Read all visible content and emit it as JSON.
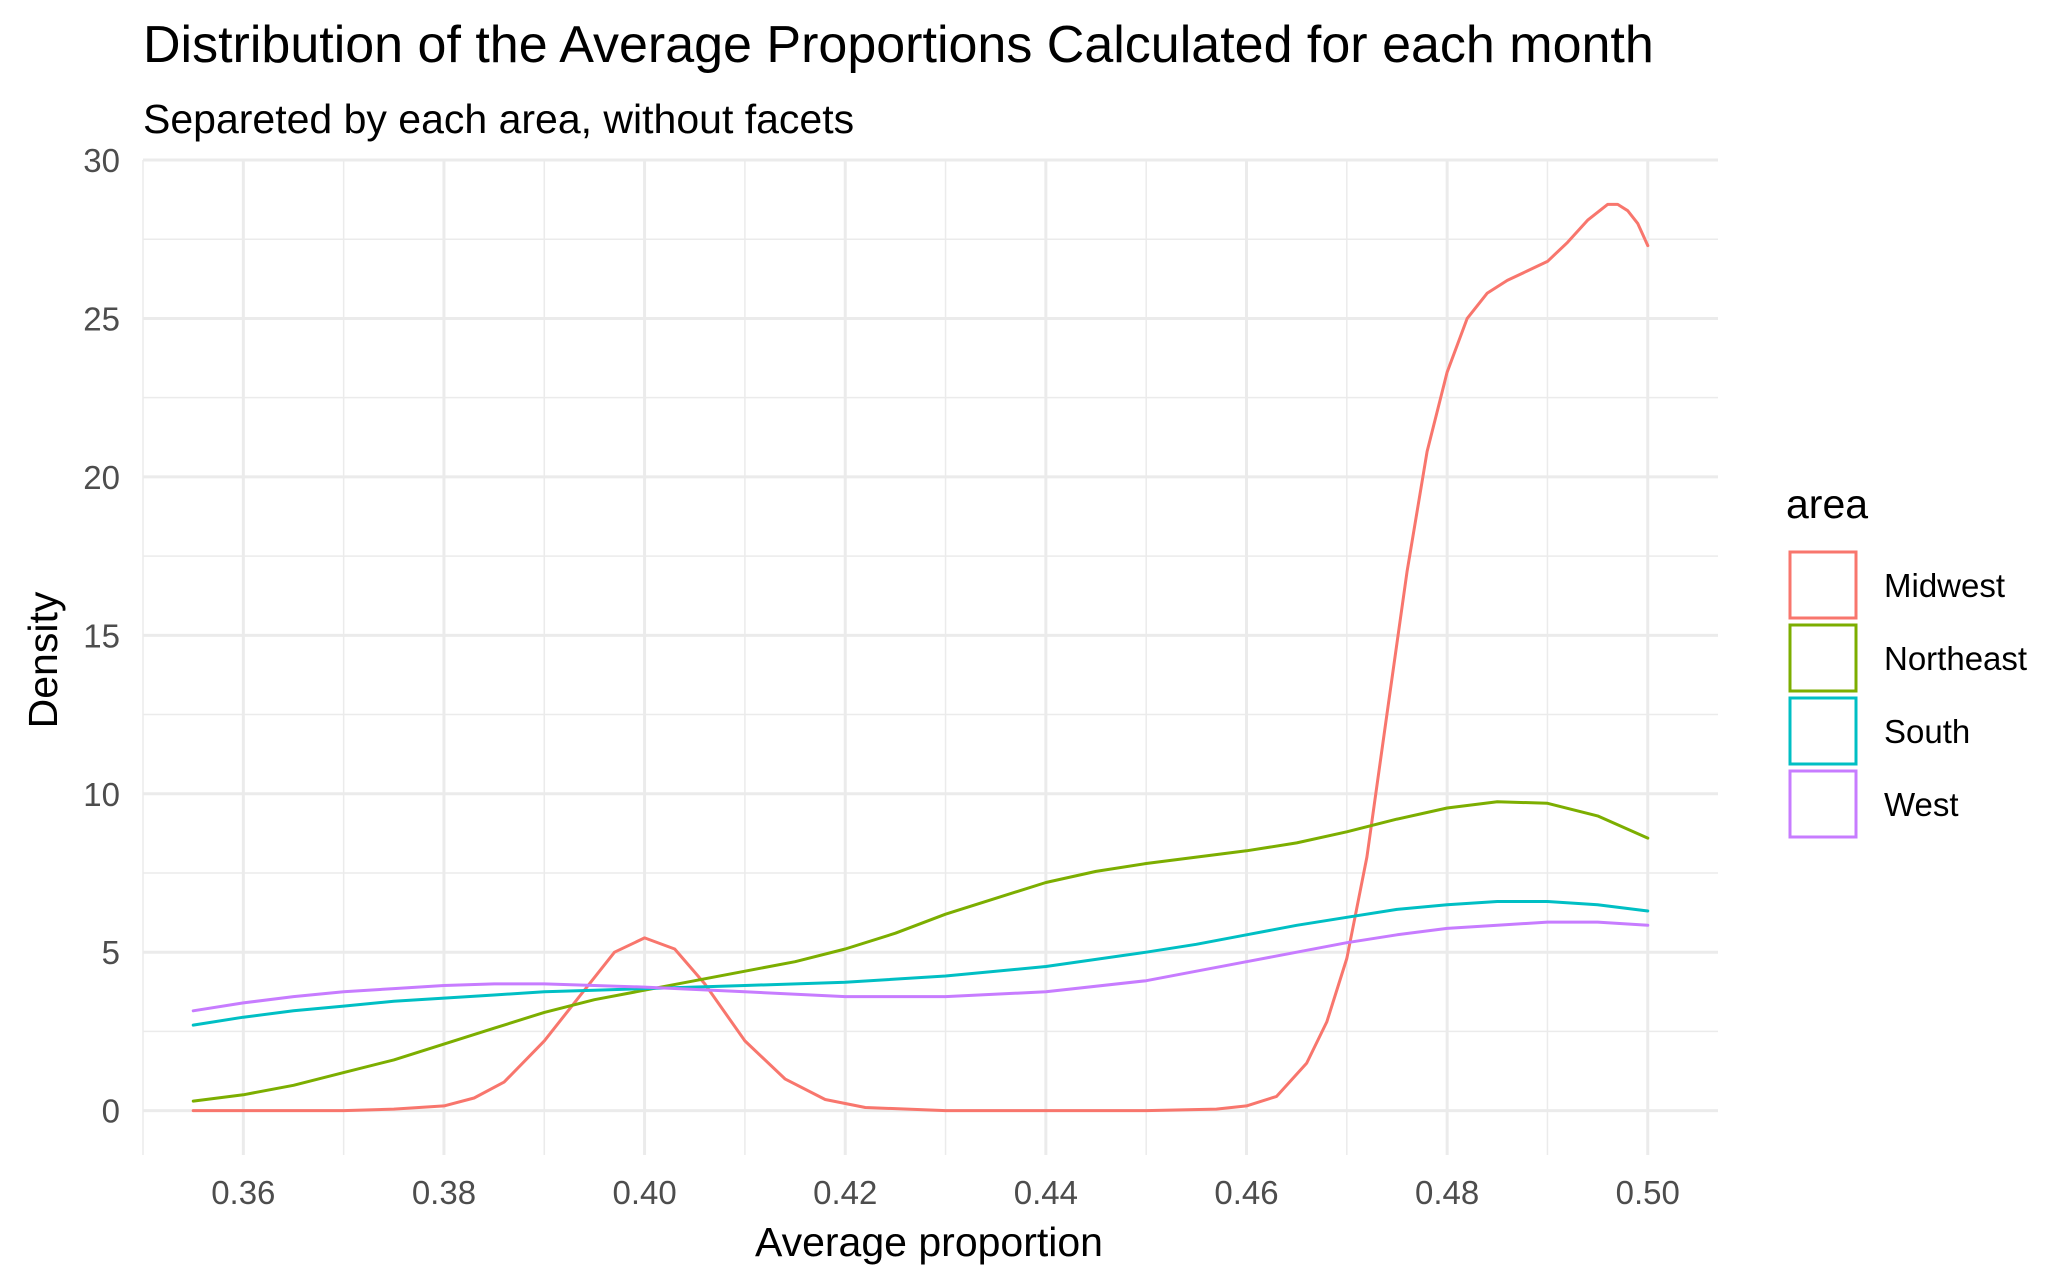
{
  "chart_data": {
    "type": "line",
    "title": "Distribution of the Average Proportions Calculated for each month",
    "subtitle": "Separeted by each area, without facets",
    "xlabel": "Average proportion",
    "ylabel": "Density",
    "xlim": [
      0.35,
      0.507
    ],
    "ylim": [
      -1.4,
      30
    ],
    "x_ticks": [
      0.36,
      0.38,
      0.4,
      0.42,
      0.44,
      0.46,
      0.48,
      0.5
    ],
    "x_tick_labels": [
      "0.36",
      "0.38",
      "0.40",
      "0.42",
      "0.44",
      "0.46",
      "0.48",
      "0.50"
    ],
    "y_ticks": [
      0,
      5,
      10,
      15,
      20,
      25,
      30
    ],
    "y_tick_labels": [
      "0",
      "5",
      "10",
      "15",
      "20",
      "25",
      "30"
    ],
    "grid": true,
    "legend": {
      "title": "area",
      "placement": "right"
    },
    "series": [
      {
        "name": "Midwest",
        "color": "#F8766D",
        "points": [
          [
            0.355,
            0
          ],
          [
            0.37,
            0
          ],
          [
            0.375,
            0.05
          ],
          [
            0.38,
            0.15
          ],
          [
            0.383,
            0.4
          ],
          [
            0.386,
            0.9
          ],
          [
            0.39,
            2.2
          ],
          [
            0.394,
            3.8
          ],
          [
            0.397,
            5.0
          ],
          [
            0.4,
            5.45
          ],
          [
            0.403,
            5.1
          ],
          [
            0.406,
            4.0
          ],
          [
            0.41,
            2.2
          ],
          [
            0.414,
            1.0
          ],
          [
            0.418,
            0.35
          ],
          [
            0.422,
            0.1
          ],
          [
            0.43,
            0
          ],
          [
            0.45,
            0
          ],
          [
            0.457,
            0.05
          ],
          [
            0.46,
            0.15
          ],
          [
            0.463,
            0.45
          ],
          [
            0.466,
            1.5
          ],
          [
            0.468,
            2.8
          ],
          [
            0.47,
            4.8
          ],
          [
            0.472,
            8.0
          ],
          [
            0.474,
            12.5
          ],
          [
            0.476,
            17.0
          ],
          [
            0.478,
            20.8
          ],
          [
            0.48,
            23.3
          ],
          [
            0.482,
            25.0
          ],
          [
            0.484,
            25.8
          ],
          [
            0.486,
            26.2
          ],
          [
            0.488,
            26.5
          ],
          [
            0.49,
            26.8
          ],
          [
            0.492,
            27.4
          ],
          [
            0.494,
            28.1
          ],
          [
            0.496,
            28.6
          ],
          [
            0.497,
            28.6
          ],
          [
            0.498,
            28.4
          ],
          [
            0.499,
            28.0
          ],
          [
            0.5,
            27.3
          ]
        ]
      },
      {
        "name": "Northeast",
        "color": "#7CAE00",
        "points": [
          [
            0.355,
            0.3
          ],
          [
            0.36,
            0.5
          ],
          [
            0.365,
            0.8
          ],
          [
            0.37,
            1.2
          ],
          [
            0.375,
            1.6
          ],
          [
            0.38,
            2.1
          ],
          [
            0.385,
            2.6
          ],
          [
            0.39,
            3.1
          ],
          [
            0.395,
            3.5
          ],
          [
            0.4,
            3.8
          ],
          [
            0.405,
            4.1
          ],
          [
            0.41,
            4.4
          ],
          [
            0.415,
            4.7
          ],
          [
            0.42,
            5.1
          ],
          [
            0.425,
            5.6
          ],
          [
            0.43,
            6.2
          ],
          [
            0.435,
            6.7
          ],
          [
            0.44,
            7.2
          ],
          [
            0.445,
            7.55
          ],
          [
            0.45,
            7.8
          ],
          [
            0.455,
            8.0
          ],
          [
            0.46,
            8.2
          ],
          [
            0.465,
            8.45
          ],
          [
            0.47,
            8.8
          ],
          [
            0.475,
            9.2
          ],
          [
            0.48,
            9.55
          ],
          [
            0.485,
            9.75
          ],
          [
            0.49,
            9.7
          ],
          [
            0.495,
            9.3
          ],
          [
            0.5,
            8.6
          ]
        ]
      },
      {
        "name": "South",
        "color": "#00BFC4",
        "points": [
          [
            0.355,
            2.7
          ],
          [
            0.36,
            2.95
          ],
          [
            0.365,
            3.15
          ],
          [
            0.37,
            3.3
          ],
          [
            0.375,
            3.45
          ],
          [
            0.38,
            3.55
          ],
          [
            0.385,
            3.65
          ],
          [
            0.39,
            3.75
          ],
          [
            0.395,
            3.8
          ],
          [
            0.4,
            3.85
          ],
          [
            0.41,
            3.95
          ],
          [
            0.42,
            4.05
          ],
          [
            0.43,
            4.25
          ],
          [
            0.44,
            4.55
          ],
          [
            0.45,
            5.0
          ],
          [
            0.455,
            5.25
          ],
          [
            0.46,
            5.55
          ],
          [
            0.465,
            5.85
          ],
          [
            0.47,
            6.1
          ],
          [
            0.475,
            6.35
          ],
          [
            0.48,
            6.5
          ],
          [
            0.485,
            6.6
          ],
          [
            0.49,
            6.6
          ],
          [
            0.495,
            6.5
          ],
          [
            0.5,
            6.3
          ]
        ]
      },
      {
        "name": "West",
        "color": "#C77CFF",
        "points": [
          [
            0.355,
            3.15
          ],
          [
            0.36,
            3.4
          ],
          [
            0.365,
            3.6
          ],
          [
            0.37,
            3.75
          ],
          [
            0.375,
            3.85
          ],
          [
            0.38,
            3.95
          ],
          [
            0.385,
            4.0
          ],
          [
            0.39,
            4.0
          ],
          [
            0.395,
            3.95
          ],
          [
            0.4,
            3.9
          ],
          [
            0.41,
            3.75
          ],
          [
            0.42,
            3.6
          ],
          [
            0.43,
            3.6
          ],
          [
            0.44,
            3.75
          ],
          [
            0.45,
            4.1
          ],
          [
            0.455,
            4.4
          ],
          [
            0.46,
            4.7
          ],
          [
            0.465,
            5.0
          ],
          [
            0.47,
            5.3
          ],
          [
            0.475,
            5.55
          ],
          [
            0.48,
            5.75
          ],
          [
            0.485,
            5.85
          ],
          [
            0.49,
            5.95
          ],
          [
            0.495,
            5.95
          ],
          [
            0.5,
            5.85
          ]
        ]
      }
    ]
  }
}
